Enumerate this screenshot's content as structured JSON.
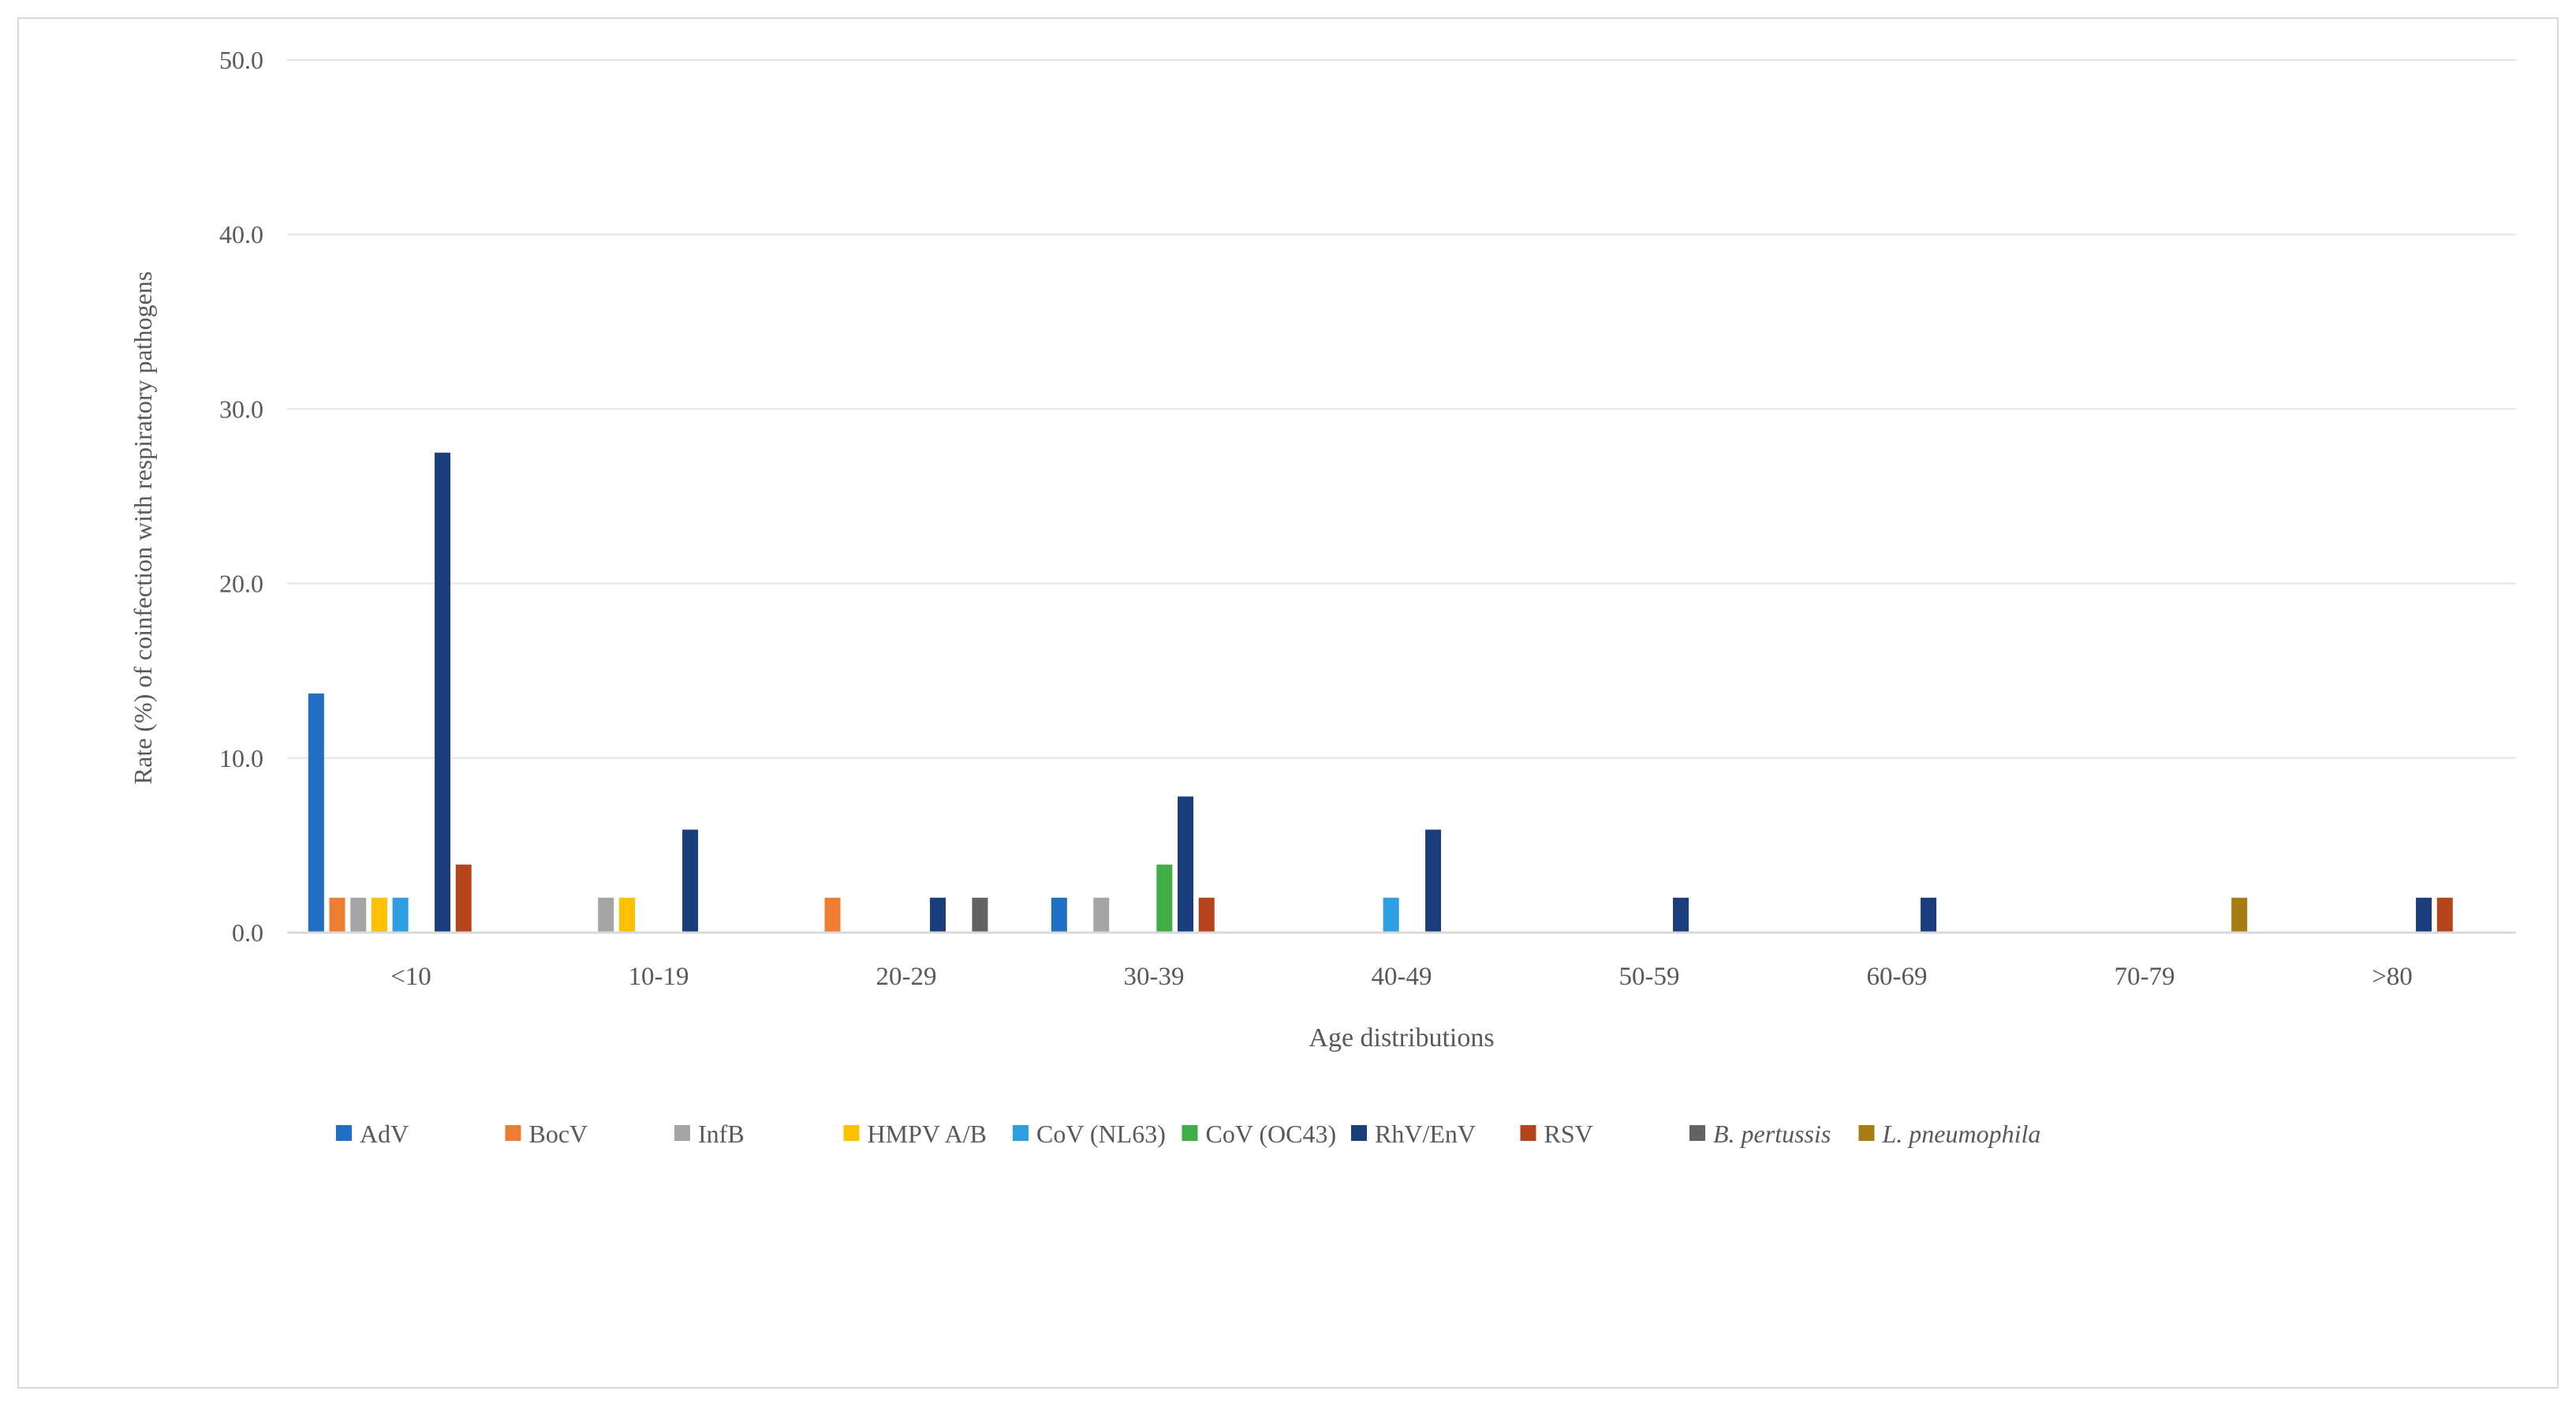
{
  "chart_data": {
    "type": "bar",
    "title": "",
    "xlabel": "Age distributions",
    "ylabel": "Rate (%) of coinfection with respiratory pathogens",
    "ylim": [
      0,
      50
    ],
    "yticks": [
      "0.0",
      "10.0",
      "20.0",
      "30.0",
      "40.0",
      "50.0"
    ],
    "grid": true,
    "legend_position": "bottom",
    "categories": [
      "<10",
      "10-19",
      "20-29",
      "30-39",
      "40-49",
      "50-59",
      "60-69",
      "70-79",
      ">80"
    ],
    "series": [
      {
        "name": "AdV",
        "color": "#1f6fc5",
        "italic": false,
        "values": [
          13.7,
          0,
          0,
          2,
          0,
          0,
          0,
          0,
          0
        ]
      },
      {
        "name": "BocV",
        "color": "#ed7d31",
        "italic": false,
        "values": [
          2,
          0,
          2,
          0,
          0,
          0,
          0,
          0,
          0
        ]
      },
      {
        "name": "InfB",
        "color": "#a5a5a5",
        "italic": false,
        "values": [
          2,
          2,
          0,
          2,
          0,
          0,
          0,
          0,
          0
        ]
      },
      {
        "name": "HMPV A/B",
        "color": "#ffc000",
        "italic": false,
        "values": [
          2,
          2,
          0,
          0,
          0,
          0,
          0,
          0,
          0
        ]
      },
      {
        "name": "CoV (NL63)",
        "color": "#2e9fe0",
        "italic": false,
        "values": [
          2,
          0,
          0,
          0,
          2,
          0,
          0,
          0,
          0
        ]
      },
      {
        "name": "CoV (OC43)",
        "color": "#3fae45",
        "italic": false,
        "values": [
          0,
          0,
          0,
          3.9,
          0,
          0,
          0,
          0,
          0
        ]
      },
      {
        "name": "RhV/EnV",
        "color": "#1a3d7c",
        "italic": false,
        "values": [
          27.5,
          5.9,
          2,
          7.8,
          5.9,
          2,
          2,
          0,
          2
        ]
      },
      {
        "name": "RSV",
        "color": "#b5431b",
        "italic": false,
        "values": [
          3.9,
          0,
          0,
          2,
          0,
          0,
          0,
          0,
          2
        ]
      },
      {
        "name": "B. pertussis",
        "color": "#636363",
        "italic": true,
        "values": [
          0,
          0,
          2,
          0,
          0,
          0,
          0,
          0,
          0
        ]
      },
      {
        "name": "L. pneumophila",
        "color": "#a67c13",
        "italic": true,
        "values": [
          0,
          0,
          0,
          0,
          0,
          0,
          0,
          2,
          0
        ]
      }
    ]
  }
}
